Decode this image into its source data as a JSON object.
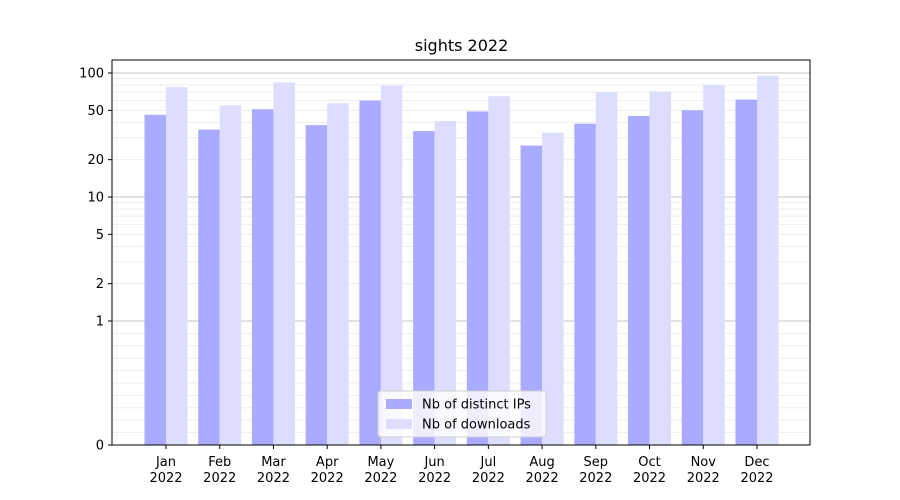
{
  "chart_data": {
    "type": "bar",
    "title": "sights 2022",
    "xlabel": "",
    "ylabel": "",
    "scale": "symlog",
    "ylim": [
      0,
      110
    ],
    "yticks": [
      0,
      1,
      2,
      5,
      10,
      20,
      50,
      100
    ],
    "categories": [
      {
        "month": "Jan",
        "year": "2022"
      },
      {
        "month": "Feb",
        "year": "2022"
      },
      {
        "month": "Mar",
        "year": "2022"
      },
      {
        "month": "Apr",
        "year": "2022"
      },
      {
        "month": "May",
        "year": "2022"
      },
      {
        "month": "Jun",
        "year": "2022"
      },
      {
        "month": "Jul",
        "year": "2022"
      },
      {
        "month": "Aug",
        "year": "2022"
      },
      {
        "month": "Sep",
        "year": "2022"
      },
      {
        "month": "Oct",
        "year": "2022"
      },
      {
        "month": "Nov",
        "year": "2022"
      },
      {
        "month": "Dec",
        "year": "2022"
      }
    ],
    "series": [
      {
        "name": "Nb of distinct IPs",
        "color": "#aaaaff",
        "values": [
          46,
          35,
          51,
          38,
          60,
          34,
          49,
          26,
          39,
          45,
          50,
          61
        ]
      },
      {
        "name": "Nb of downloads",
        "color": "#ddddff",
        "values": [
          77,
          55,
          84,
          57,
          79,
          41,
          65,
          33,
          70,
          71,
          80,
          95
        ]
      }
    ],
    "legend": "lower-center",
    "grid": true
  }
}
